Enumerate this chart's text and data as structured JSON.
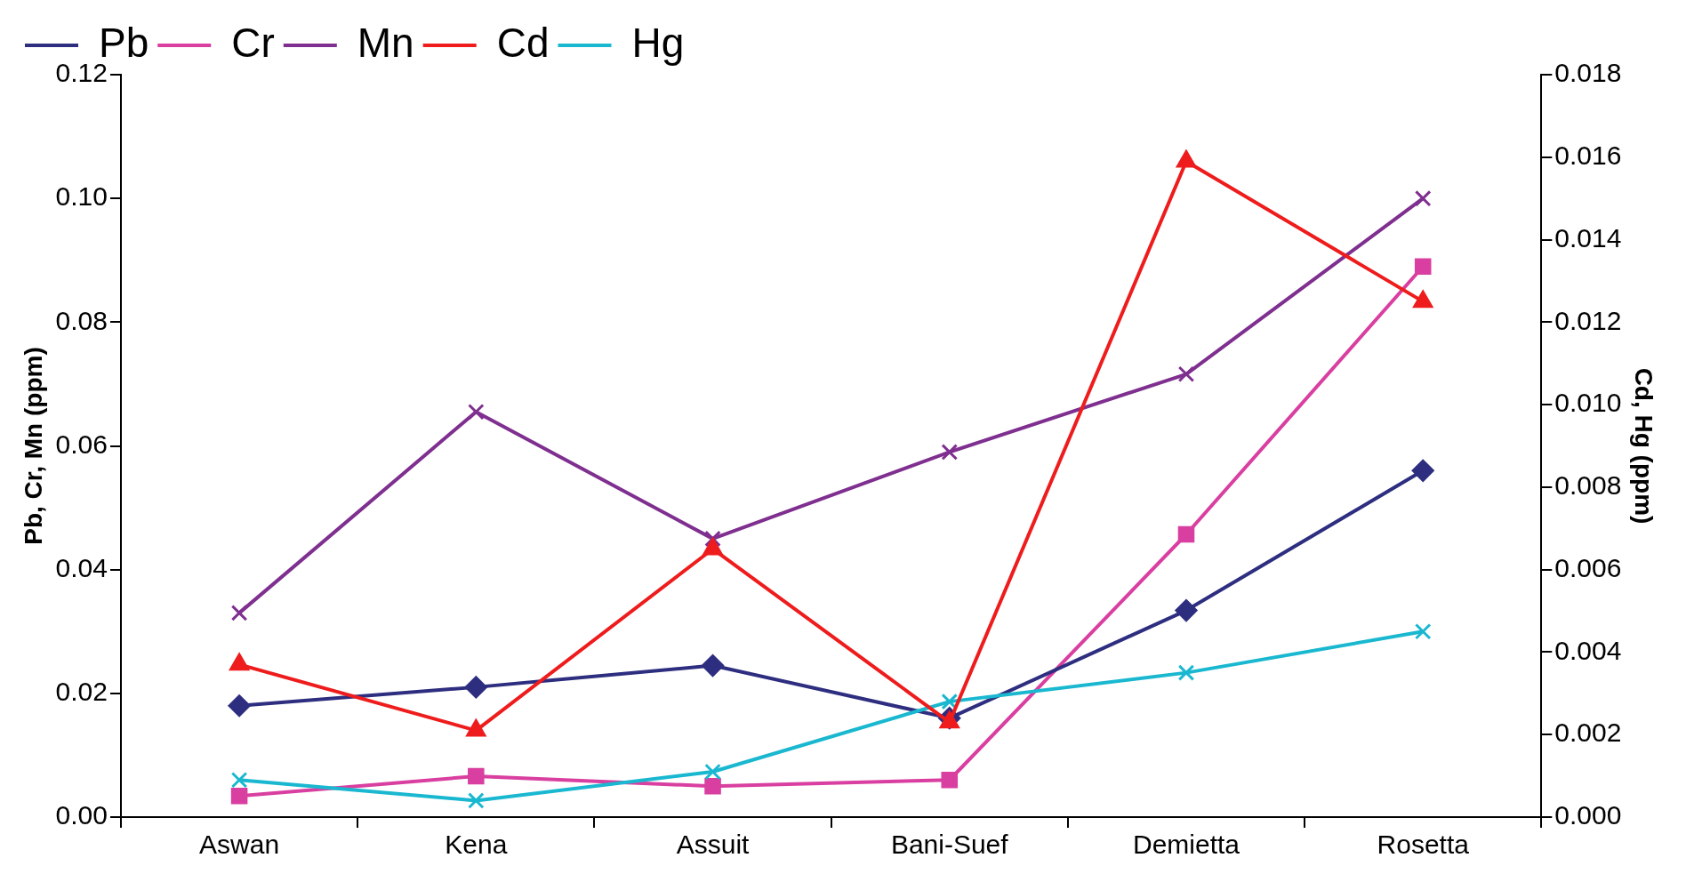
{
  "chart_data": {
    "type": "line",
    "xlabel": null,
    "ylabel": "Pb, Cr, Mn (ppm)",
    "y2label": "Cd, Hg (ppm)",
    "categories": [
      "Aswan",
      "Kena",
      "Assuit",
      "Bani-Suef",
      "Demietta",
      "Rosetta"
    ],
    "series": [
      {
        "name": "Pb",
        "color": "#2e2e80",
        "marker": "diamond",
        "values": [
          0.018,
          0.021,
          0.0245,
          0.016,
          0.0334,
          0.056
        ]
      },
      {
        "name": "Cr",
        "color": "#d93fa0",
        "marker": "square",
        "values": [
          0.0034,
          0.0066,
          0.005,
          0.006,
          0.0457,
          0.089
        ]
      },
      {
        "name": "Mn",
        "color": "#7f2f8f",
        "marker": "cross",
        "values": [
          0.033,
          0.0655,
          0.045,
          0.059,
          0.0716,
          0.1
        ]
      },
      {
        "name": "Cd",
        "color": "#ee1c1c",
        "marker": "triangle",
        "axis": "y2",
        "values": [
          0.0037,
          0.0021,
          0.0065,
          0.0023,
          0.0159,
          0.0125
        ]
      },
      {
        "name": "Hg",
        "color": "#1ab8d0",
        "marker": "cross",
        "axis": "y2",
        "values": [
          0.0009,
          0.0004,
          0.0011,
          0.0028,
          0.0035,
          0.0045
        ]
      }
    ],
    "ylim": [
      0,
      0.12
    ],
    "yticks": [
      {
        "value": 0,
        "label": "0.00"
      },
      {
        "value": 0.02,
        "label": "0.02"
      },
      {
        "value": 0.04,
        "label": "0.04"
      },
      {
        "value": 0.06,
        "label": "0.06"
      },
      {
        "value": 0.08,
        "label": "0.08"
      },
      {
        "value": 0.1,
        "label": "0.10"
      },
      {
        "value": 0.12,
        "label": "0.12"
      }
    ],
    "y2lim": [
      0,
      0.018
    ],
    "y2ticks": [
      {
        "value": 0,
        "label": "0.000"
      },
      {
        "value": 0.002,
        "label": "0.002"
      },
      {
        "value": 0.004,
        "label": "0.004"
      },
      {
        "value": 0.006,
        "label": "0.006"
      },
      {
        "value": 0.008,
        "label": "0.008"
      },
      {
        "value": 0.01,
        "label": "0.010"
      },
      {
        "value": 0.012,
        "label": "0.012"
      },
      {
        "value": 0.014,
        "label": "0.014"
      },
      {
        "value": 0.016,
        "label": "0.016"
      },
      {
        "value": 0.018,
        "label": "0.018"
      }
    ],
    "grid": false,
    "legend": "top",
    "line_style": "solid"
  }
}
